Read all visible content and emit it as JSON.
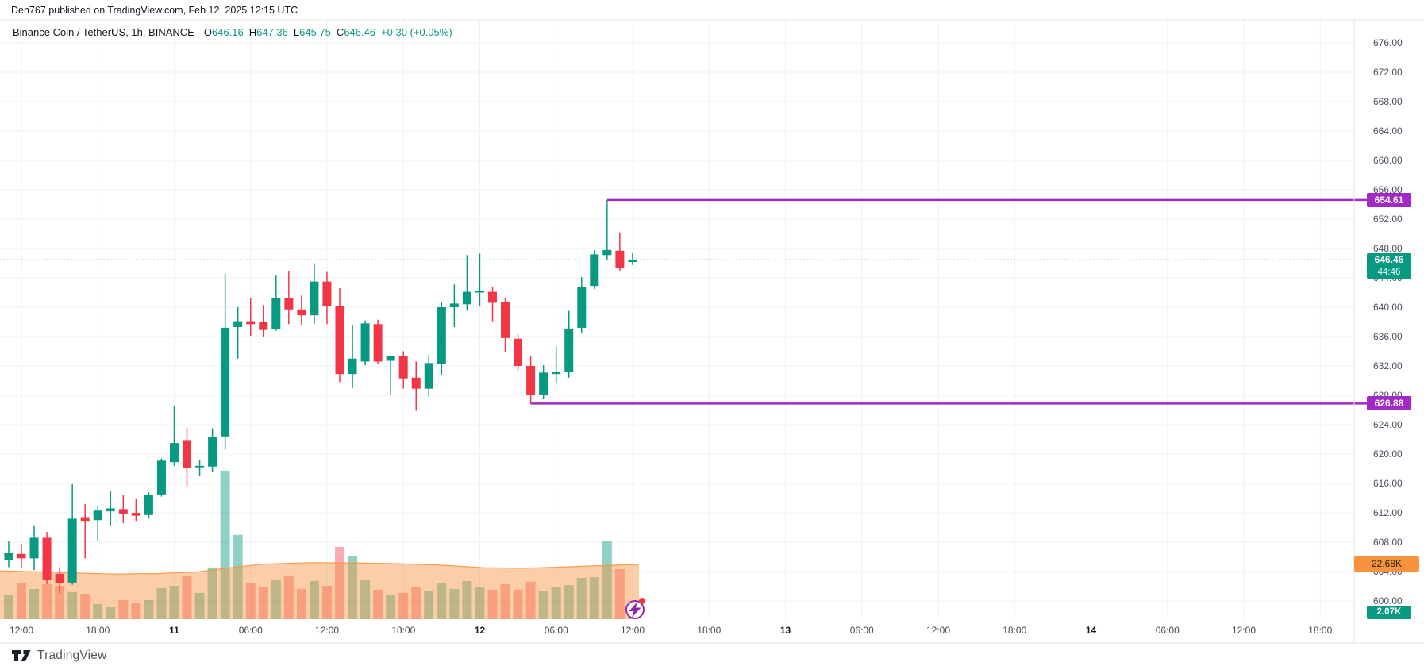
{
  "header": {
    "published_line": "Den767 published on TradingView.com, Feb 12, 2025 12:15 UTC"
  },
  "legend": {
    "symbol": "Binance Coin / TetherUS, 1h, BINANCE",
    "ohlc": [
      {
        "label": "O",
        "value": "646.16"
      },
      {
        "label": "H",
        "value": "647.36"
      },
      {
        "label": "L",
        "value": "645.75"
      },
      {
        "label": "C",
        "value": "646.46"
      }
    ],
    "change": "+0.30 (+0.05%)"
  },
  "price_axis": {
    "tick_labels": [
      "676.00",
      "672.00",
      "668.00",
      "664.00",
      "660.00",
      "656.00",
      "652.00",
      "648.00",
      "644.00",
      "640.00",
      "636.00",
      "632.00",
      "628.00",
      "624.00",
      "620.00",
      "616.00",
      "612.00",
      "608.00",
      "604.00",
      "600.00"
    ]
  },
  "time_axis": {
    "labels": [
      {
        "t": "12:00",
        "day": false
      },
      {
        "t": "18:00",
        "day": false
      },
      {
        "t": "11",
        "day": true
      },
      {
        "t": "06:00",
        "day": false
      },
      {
        "t": "12:00",
        "day": false
      },
      {
        "t": "18:00",
        "day": false
      },
      {
        "t": "12",
        "day": true
      },
      {
        "t": "06:00",
        "day": false
      },
      {
        "t": "12:00",
        "day": false
      },
      {
        "t": "18:00",
        "day": false
      },
      {
        "t": "13",
        "day": true
      },
      {
        "t": "06:00",
        "day": false
      },
      {
        "t": "12:00",
        "day": false
      },
      {
        "t": "18:00",
        "day": false
      },
      {
        "t": "14",
        "day": true
      },
      {
        "t": "06:00",
        "day": false
      },
      {
        "t": "12:00",
        "day": false
      },
      {
        "t": "18:00",
        "day": false
      }
    ]
  },
  "badges": {
    "resistance": {
      "value": "654.61"
    },
    "support": {
      "value": "626.88"
    },
    "last_price": {
      "value": "646.46",
      "countdown": "44:46"
    },
    "volume_ma": {
      "value": "22.68K"
    },
    "volume_current": {
      "value": "2.07K"
    }
  },
  "watermark": {
    "logo_text": "TradingView"
  },
  "icons": {
    "marker": "flash-icon",
    "logo": "tradingview-logo-icon"
  },
  "colors": {
    "up": "#089981",
    "down": "#f23645",
    "vol_up": "rgba(8,153,129,0.45)",
    "vol_down": "rgba(242,54,69,0.42)",
    "ma_fill": "rgba(247,146,61,0.45)",
    "ma_line": "rgba(247,146,61,0.85)",
    "ray": "#a229c5",
    "grid": "#eff1f6",
    "frame": "#e0e3eb",
    "last_line": "#089981"
  },
  "chart_data": {
    "type": "candlestick",
    "title": "Binance Coin / TetherUS",
    "interval": "1h",
    "exchange": "BINANCE",
    "ylim": [
      598.5,
      678.5
    ],
    "price_grid_step": 4,
    "legend_position": "top-left",
    "grid": true,
    "last_price": 646.46,
    "countdown": "44:46",
    "hlines": [
      {
        "price": 654.61,
        "label": "654.61",
        "starts_at": "Feb 12 10:00"
      },
      {
        "price": 626.88,
        "label": "626.88",
        "starts_at": "Feb 12 04:00"
      }
    ],
    "volume_unit": "K",
    "volume_current": 2.07,
    "volume_ma_current": 22.68,
    "volume_ma_points": [
      [
        0,
        20.0
      ],
      [
        70,
        19.4
      ],
      [
        140,
        18.7
      ],
      [
        200,
        18.9
      ],
      [
        250,
        19.6
      ],
      [
        290,
        21.3
      ],
      [
        330,
        22.8
      ],
      [
        390,
        23.4
      ],
      [
        450,
        23.3
      ],
      [
        510,
        22.9
      ],
      [
        560,
        22.3
      ],
      [
        610,
        21.3
      ],
      [
        660,
        21.1
      ],
      [
        700,
        21.5
      ],
      [
        740,
        22.0
      ],
      [
        805,
        22.68
      ]
    ],
    "candle_columns": [
      "time",
      "open",
      "high",
      "low",
      "close",
      "volume_k"
    ],
    "candles": [
      [
        "Feb 10 11:00",
        605.6,
        608.1,
        604.6,
        606.6,
        10.2
      ],
      [
        "Feb 10 12:00",
        606.4,
        607.8,
        604.4,
        605.8,
        15.1
      ],
      [
        "Feb 10 13:00",
        605.8,
        610.3,
        604.2,
        608.6,
        12.5
      ],
      [
        "Feb 10 14:00",
        608.6,
        609.4,
        602.3,
        602.9,
        14.5
      ],
      [
        "Feb 10 15:00",
        603.7,
        604.6,
        601.0,
        602.4,
        13.8
      ],
      [
        "Feb 10 16:00",
        602.5,
        615.9,
        602.2,
        611.2,
        11.2
      ],
      [
        "Feb 10 17:00",
        611.4,
        613.2,
        605.8,
        610.9,
        10.5
      ],
      [
        "Feb 10 18:00",
        611.0,
        612.9,
        608.2,
        612.3,
        6.3
      ],
      [
        "Feb 10 19:00",
        612.2,
        614.9,
        610.3,
        612.6,
        4.9
      ],
      [
        "Feb 10 20:00",
        612.5,
        614.4,
        610.6,
        611.9,
        7.9
      ],
      [
        "Feb 10 21:00",
        612.0,
        613.9,
        610.9,
        611.6,
        6.6
      ],
      [
        "Feb 10 22:00",
        611.7,
        614.8,
        611.2,
        614.4,
        7.9
      ],
      [
        "Feb 10 23:00",
        614.5,
        619.4,
        614.2,
        619.1,
        12.8
      ],
      [
        "Feb 11 00:00",
        618.9,
        626.6,
        618.4,
        621.5,
        13.8
      ],
      [
        "Feb 11 01:00",
        621.9,
        623.6,
        615.6,
        618.1,
        18.1
      ],
      [
        "Feb 11 02:00",
        618.2,
        619.2,
        617.0,
        618.4,
        10.9
      ],
      [
        "Feb 11 03:00",
        618.3,
        623.5,
        617.6,
        622.3,
        21.4
      ],
      [
        "Feb 11 04:00",
        622.4,
        644.6,
        620.6,
        637.2,
        61.5
      ],
      [
        "Feb 11 05:00",
        637.3,
        640.0,
        633.0,
        638.1,
        34.9
      ],
      [
        "Feb 11 06:00",
        638.1,
        641.3,
        636.1,
        637.7,
        14.8
      ],
      [
        "Feb 11 07:00",
        638.0,
        640.3,
        635.9,
        636.9,
        13.2
      ],
      [
        "Feb 11 08:00",
        637.0,
        644.3,
        636.8,
        641.2,
        16.4
      ],
      [
        "Feb 11 09:00",
        641.2,
        644.9,
        637.7,
        639.7,
        18.1
      ],
      [
        "Feb 11 10:00",
        639.7,
        641.6,
        637.6,
        638.9,
        12.5
      ],
      [
        "Feb 11 11:00",
        638.9,
        646.0,
        637.7,
        643.5,
        15.8
      ],
      [
        "Feb 11 12:00",
        643.5,
        644.8,
        637.7,
        640.1,
        13.8
      ],
      [
        "Feb 11 13:00",
        640.2,
        642.6,
        629.8,
        630.9,
        29.9
      ],
      [
        "Feb 11 14:00",
        630.9,
        637.5,
        629.0,
        633.0,
        26.0
      ],
      [
        "Feb 11 15:00",
        632.6,
        638.2,
        632.1,
        637.8,
        16.4
      ],
      [
        "Feb 11 16:00",
        637.7,
        638.3,
        632.3,
        632.6,
        12.2
      ],
      [
        "Feb 11 17:00",
        632.7,
        633.5,
        628.1,
        633.3,
        9.9
      ],
      [
        "Feb 11 18:00",
        633.3,
        634.0,
        628.9,
        630.3,
        10.9
      ],
      [
        "Feb 11 19:00",
        630.4,
        632.6,
        625.9,
        628.9,
        13.2
      ],
      [
        "Feb 11 20:00",
        628.9,
        633.5,
        627.8,
        632.4,
        11.8
      ],
      [
        "Feb 11 21:00",
        632.3,
        640.7,
        630.8,
        640.0,
        14.8
      ],
      [
        "Feb 11 22:00",
        640.0,
        643.1,
        637.3,
        640.5,
        12.5
      ],
      [
        "Feb 11 23:00",
        640.4,
        647.1,
        639.5,
        642.1,
        15.8
      ],
      [
        "Feb 12 00:00",
        642.0,
        647.3,
        640.1,
        642.2,
        13.2
      ],
      [
        "Feb 12 01:00",
        642.1,
        642.8,
        638.1,
        640.6,
        12.2
      ],
      [
        "Feb 12 02:00",
        640.7,
        641.2,
        633.9,
        635.8,
        14.5
      ],
      [
        "Feb 12 03:00",
        635.7,
        636.3,
        631.4,
        632.0,
        12.2
      ],
      [
        "Feb 12 04:00",
        632.0,
        633.4,
        626.88,
        628.1,
        15.5
      ],
      [
        "Feb 12 05:00",
        628.1,
        632.1,
        627.5,
        631.1,
        11.8
      ],
      [
        "Feb 12 06:00",
        630.9,
        634.6,
        629.6,
        631.2,
        13.2
      ],
      [
        "Feb 12 07:00",
        631.2,
        639.5,
        630.4,
        637.1,
        14.1
      ],
      [
        "Feb 12 08:00",
        637.2,
        644.1,
        636.5,
        642.8,
        17.1
      ],
      [
        "Feb 12 09:00",
        642.9,
        647.8,
        642.5,
        647.2,
        17.4
      ],
      [
        "Feb 12 10:00",
        647.1,
        654.61,
        646.5,
        647.8,
        32.2
      ],
      [
        "Feb 12 11:00",
        647.7,
        650.2,
        644.9,
        645.3,
        20.7
      ],
      [
        "Feb 12 12:00",
        646.16,
        647.36,
        645.75,
        646.46,
        2.07
      ]
    ]
  }
}
